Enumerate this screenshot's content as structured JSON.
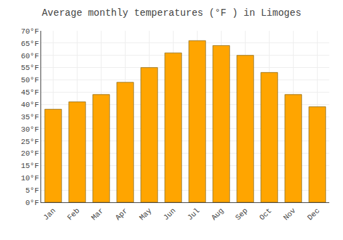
{
  "chart_data": {
    "type": "bar",
    "title": "Average monthly temperatures (°F ) in Limoges",
    "categories": [
      "Jan",
      "Feb",
      "Mar",
      "Apr",
      "May",
      "Jun",
      "Jul",
      "Aug",
      "Sep",
      "Oct",
      "Nov",
      "Dec"
    ],
    "values": [
      38,
      41,
      44,
      49,
      55,
      61,
      66,
      64,
      60,
      53,
      44,
      39
    ],
    "color": "#FFA500",
    "ylim": [
      0,
      70
    ],
    "yticks": [
      {
        "value": 0,
        "label": "0°F"
      },
      {
        "value": 5,
        "label": "5°F"
      },
      {
        "value": 10,
        "label": "10°F"
      },
      {
        "value": 15,
        "label": "15°F"
      },
      {
        "value": 20,
        "label": "20°F"
      },
      {
        "value": 25,
        "label": "25°F"
      },
      {
        "value": 30,
        "label": "30°F"
      },
      {
        "value": 35,
        "label": "35°F"
      },
      {
        "value": 40,
        "label": "40°F"
      },
      {
        "value": 45,
        "label": "45°F"
      },
      {
        "value": 50,
        "label": "50°F"
      },
      {
        "value": 55,
        "label": "55°F"
      },
      {
        "value": 60,
        "label": "60°F"
      },
      {
        "value": 65,
        "label": "65°F"
      },
      {
        "value": 70,
        "label": "70°F"
      }
    ],
    "grid": true
  }
}
